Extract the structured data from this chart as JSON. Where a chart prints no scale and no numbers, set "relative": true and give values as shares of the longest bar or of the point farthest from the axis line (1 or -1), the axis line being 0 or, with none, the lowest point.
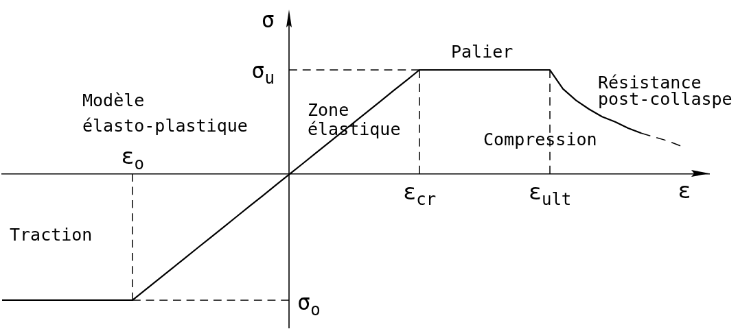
{
  "chart_data": {
    "type": "line",
    "relative": true,
    "xlabel": "ε",
    "ylabel": "σ",
    "marker": "none",
    "categories": [
      null,
      null,
      null,
      null,
      null,
      null,
      null,
      null,
      null,
      null,
      "ε$_{o}$",
      null,
      null,
      null,
      null,
      null,
      null,
      null,
      null,
      null,
      null,
      null,
      null,
      null,
      null,
      null,
      null,
      null,
      null,
      null,
      null,
      null,
      "ε$_{cr}$",
      null,
      null,
      null,
      null,
      null,
      null,
      null,
      null,
      null,
      "ε$_{ult}$",
      null,
      null,
      null,
      null,
      null,
      null,
      null,
      null,
      null,
      null
    ],
    "series": [
      {
        "color": "#000000",
        "values": [
          -1,
          -1,
          -1,
          -1,
          -1,
          -1,
          -1,
          -1,
          -1,
          -1,
          -1,
          -0.917,
          -0.835,
          -0.752,
          -0.669,
          -0.586,
          -0.504,
          -0.421,
          -0.338,
          -0.255,
          -0.173,
          -0.09,
          -0.007,
          0.075,
          0.158,
          0.241,
          0.324,
          0.406,
          0.489,
          0.572,
          0.655,
          0.737,
          0.82,
          0.82,
          0.82,
          0.82,
          0.82,
          0.82,
          0.82,
          0.82,
          0.82,
          0.82,
          0.82,
          0.67,
          0.58,
          0.51,
          0.45,
          0.41,
          0.36,
          0.32,
          null,
          null,
          null
        ]
      },
      {
        "color": "#000000",
        "line_style": "dashed",
        "values": [
          null,
          null,
          null,
          null,
          null,
          null,
          null,
          null,
          null,
          null,
          null,
          null,
          null,
          null,
          null,
          null,
          null,
          null,
          null,
          null,
          null,
          null,
          null,
          null,
          null,
          null,
          null,
          null,
          null,
          null,
          null,
          null,
          null,
          null,
          null,
          null,
          null,
          null,
          null,
          null,
          null,
          null,
          null,
          null,
          null,
          null,
          null,
          null,
          null,
          0.32,
          0.29,
          0.26,
          0.22
        ]
      },
      {
        "color": "#000000",
        "line_style": "dashed",
        "values": [
          null,
          null,
          null,
          null,
          null,
          null,
          null,
          null,
          null,
          null,
          null,
          null,
          null,
          null,
          null,
          null,
          null,
          null,
          null,
          null,
          null,
          null,
          0.82,
          0.82,
          0.82,
          0.82,
          0.82,
          0.82,
          0.82,
          0.82,
          0.82,
          0.82,
          0.82,
          null,
          null,
          null,
          null,
          null,
          null,
          null,
          null,
          null,
          null,
          null,
          null,
          null,
          null,
          null,
          null,
          null,
          null,
          null,
          null
        ]
      },
      {
        "color": "#000000",
        "line_style": "dashed",
        "values": [
          null,
          null,
          null,
          null,
          null,
          null,
          null,
          null,
          null,
          null,
          -1,
          -1,
          -1,
          -1,
          -1,
          -1,
          -1,
          -1,
          -1,
          -1,
          -1,
          -1,
          -1,
          null,
          null,
          null,
          null,
          null,
          null,
          null,
          null,
          null,
          null,
          null,
          null,
          null,
          null,
          null,
          null,
          null,
          null,
          null,
          null,
          null,
          null,
          null,
          null,
          null,
          null,
          null,
          null,
          null,
          null
        ]
      },
      {
        "color": "#000000",
        "line_style": "dashed",
        "x": [
          "ε$_{cr}$",
          "ε$_{cr}$"
        ],
        "values": [
          0.82,
          0
        ]
      },
      {
        "color": "#000000",
        "line_style": "dashed",
        "x": [
          "ε$_{ult}$",
          "ε$_{ult}$"
        ],
        "values": [
          0.82,
          0
        ]
      },
      {
        "color": "#000000",
        "line_style": "dashed",
        "x": [
          "ε$_{o}$",
          "ε$_{o}$"
        ],
        "values": [
          0,
          -1
        ]
      }
    ],
    "annotations": [
      "σ$_{u}$",
      "σ$_{o}$",
      "Modèle élasto-plastique",
      "Zone élastique",
      "Palier",
      "Résistance post-collaspe",
      "Compression",
      "Traction"
    ]
  }
}
